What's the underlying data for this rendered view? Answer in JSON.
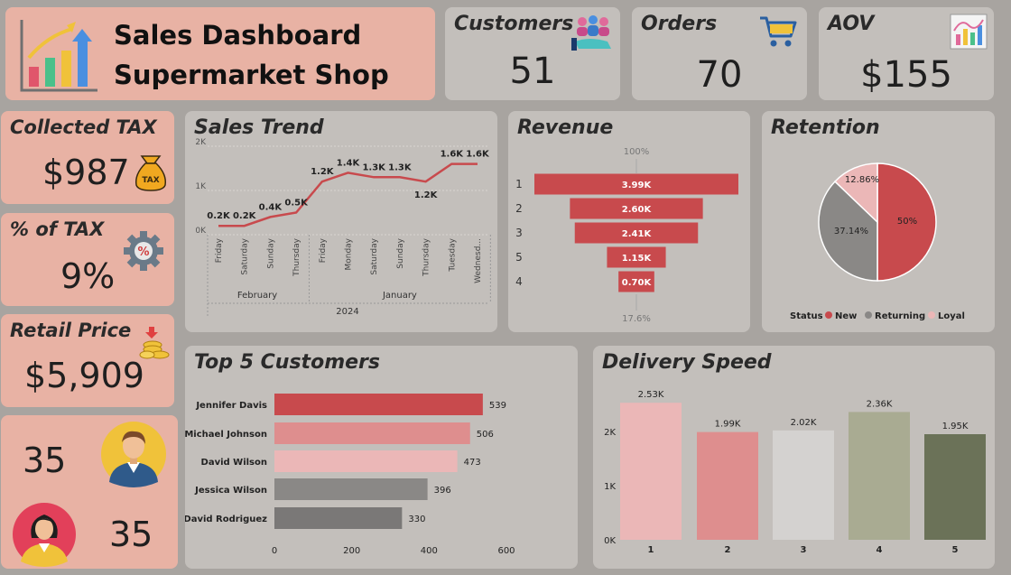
{
  "header": {
    "title_line1": "Sales Dashboard",
    "title_line2": "Supermarket Shop"
  },
  "kpis": {
    "customers": {
      "label": "Customers",
      "value": "51"
    },
    "orders": {
      "label": "Orders",
      "value": "70"
    },
    "aov": {
      "label": "AOV",
      "value": "$155"
    },
    "collected_tax": {
      "label": "Collected TAX",
      "value": "$987",
      "icon_text": "TAX"
    },
    "pct_tax": {
      "label": "% of TAX",
      "value": "9%"
    },
    "retail_price": {
      "label": "Retail Price",
      "value": "$5,909"
    },
    "male": {
      "value": "35"
    },
    "female": {
      "value": "35"
    }
  },
  "colors": {
    "red": "#c84a4d",
    "salmon": "#de8e8e",
    "lightpink": "#ebb7b7",
    "grey": "#8a8886",
    "sage": "#a9ab92",
    "olive": "#6b7258"
  },
  "chart_data": [
    {
      "type": "line",
      "title": "Sales Trend",
      "x": [
        "Friday",
        "Saturday",
        "Sunday",
        "Thursday",
        "Friday",
        "Monday",
        "Saturday",
        "Sunday",
        "Thursday",
        "Tuesday",
        "Wednesd..."
      ],
      "x_groups": [
        {
          "label": "February",
          "span": 4
        },
        {
          "label": "January",
          "span": 7
        }
      ],
      "x_super": "2024",
      "series": [
        {
          "values": [
            200,
            200,
            400,
            500,
            1200,
            1400,
            1300,
            1300,
            1200,
            1600,
            1600
          ]
        }
      ],
      "data_labels": [
        "0.2K",
        "0.2K",
        "0.4K",
        "0.5K",
        "1.2K",
        "1.4K",
        "1.3K",
        "1.3K",
        "1.2K",
        "1.6K",
        "1.6K"
      ],
      "ylim": [
        0,
        2000
      ],
      "yticks": [
        "0K",
        "1K",
        "2K"
      ]
    },
    {
      "type": "bar",
      "title": "Revenue",
      "orientation": "funnel",
      "categories": [
        "1",
        "2",
        "3",
        "5",
        "4"
      ],
      "values": [
        3990,
        2600,
        2410,
        1150,
        700
      ],
      "data_labels": [
        "3.99K",
        "2.60K",
        "2.41K",
        "1.15K",
        "0.70K"
      ],
      "top_label": "100%",
      "bottom_label": "17.6%"
    },
    {
      "type": "pie",
      "title": "Retention",
      "categories": [
        "New",
        "Returning",
        "Loyal"
      ],
      "values": [
        50,
        37.14,
        12.86
      ],
      "data_labels": [
        "50%",
        "37.14%",
        "12.86%"
      ],
      "legend_title": "Status",
      "legend": "bottom"
    },
    {
      "type": "bar",
      "title": "Top 5 Customers",
      "orientation": "horizontal",
      "categories": [
        "Jennifer Davis",
        "Michael Johnson",
        "David Wilson",
        "Jessica Wilson",
        "David Rodriguez"
      ],
      "values": [
        539,
        506,
        473,
        396,
        330
      ],
      "data_labels": [
        "539",
        "506",
        "473",
        "396",
        "330"
      ],
      "xlim": [
        0,
        600
      ],
      "xticks": [
        "0",
        "200",
        "400",
        "600"
      ]
    },
    {
      "type": "bar",
      "title": "Delivery Speed",
      "categories": [
        "1",
        "2",
        "3",
        "4",
        "5"
      ],
      "values": [
        2530,
        1990,
        2020,
        2360,
        1950
      ],
      "data_labels": [
        "2.53K",
        "1.99K",
        "2.02K",
        "2.36K",
        "1.95K"
      ],
      "ylim": [
        0,
        2700
      ],
      "yticks": [
        "0K",
        "1K",
        "2K"
      ]
    }
  ]
}
